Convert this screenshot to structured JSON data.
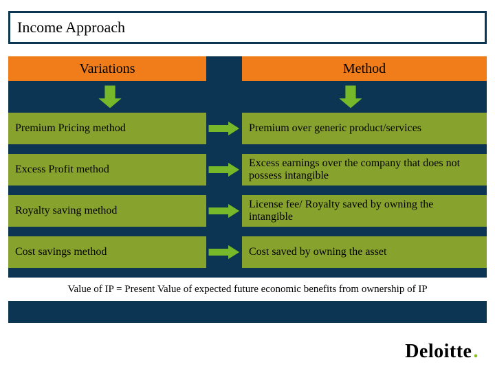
{
  "colors": {
    "navy": "#0b3552",
    "white": "#ffffff",
    "olive": "#88a22e",
    "orange": "#f07d1a",
    "arrow": "#76b82a",
    "arrowBorder": "#0b3552",
    "black": "#000000",
    "logoGreen": "#86bc25"
  },
  "title": "Income Approach",
  "headers": {
    "left": "Variations",
    "right": "Method"
  },
  "rows": [
    {
      "left": "Premium Pricing method",
      "right": "Premium over generic product/services"
    },
    {
      "left": "Excess Profit method",
      "right": "Excess earnings over the company that does not possess intangible"
    },
    {
      "left": "Royalty saving method",
      "right": "License fee/ Royalty saved by owning the intangible"
    },
    {
      "left": "Cost savings method",
      "right": "Cost saved by owning the asset"
    }
  ],
  "footer": "Value of IP =  Present Value of expected future economic benefits from ownership of IP",
  "logo": {
    "text": "Deloitte",
    "dot": "."
  },
  "layout": {
    "downArrowLeftX": 130,
    "downArrowRightX": 480,
    "downArrowW": 36,
    "downArrowH": 34,
    "rightArrowW": 46,
    "rightArrowH": 22
  }
}
